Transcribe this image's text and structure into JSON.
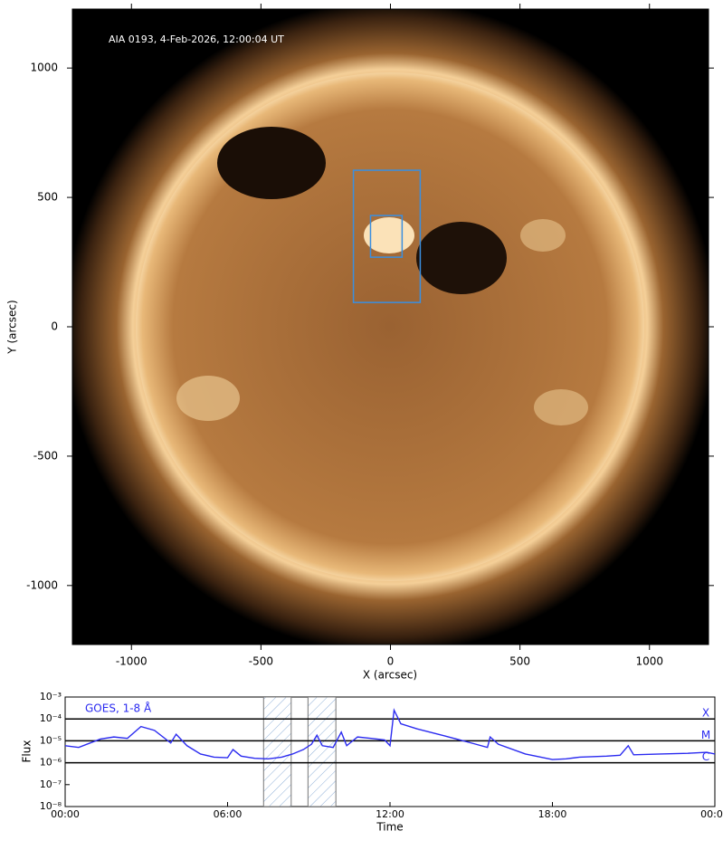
{
  "chart_data": [
    {
      "type": "image",
      "title": "AIA 0193, 4-Feb-2026, 12:00:04 UT",
      "xlabel": "X (arcsec)",
      "ylabel": "Y (arcsec)",
      "xlim": [
        -1228,
        1228
      ],
      "ylim": [
        -1228,
        1228
      ],
      "xticks": [
        -1000,
        -500,
        0,
        500,
        1000
      ],
      "yticks": [
        -1000,
        -500,
        0,
        500,
        1000
      ],
      "boxes": [
        {
          "x": [
            -143,
            115
          ],
          "y": [
            94,
            605
          ]
        },
        {
          "x": [
            -77,
            45
          ],
          "y": [
            269,
            430
          ]
        }
      ],
      "color": "#3a8fe0"
    },
    {
      "type": "line",
      "xlabel": "Time",
      "ylabel": "Flux",
      "log_y": true,
      "xlim": [
        0,
        24
      ],
      "ylim": [
        1e-08,
        0.001
      ],
      "xticks": [
        {
          "value": 0,
          "label": "00:00"
        },
        {
          "value": 6,
          "label": "06:00"
        },
        {
          "value": 12,
          "label": "12:00"
        },
        {
          "value": 18,
          "label": "18:00"
        },
        {
          "value": 24,
          "label": "00:00"
        }
      ],
      "yticks": [
        {
          "value": 1e-08,
          "label": "10⁻⁸"
        },
        {
          "value": 1e-07,
          "label": "10⁻⁷"
        },
        {
          "value": 1e-06,
          "label": "10⁻⁶"
        },
        {
          "value": 1e-05,
          "label": "10⁻⁵"
        },
        {
          "value": 0.0001,
          "label": "10⁻⁴"
        },
        {
          "value": 0.001,
          "label": "10⁻³"
        }
      ],
      "levels": [
        {
          "value": 0.0001,
          "label": "X"
        },
        {
          "value": 1e-05,
          "label": "M"
        },
        {
          "value": 1e-06,
          "label": "C"
        }
      ],
      "shaded_spans": [
        [
          7.33,
          8.35
        ],
        [
          8.97,
          10.0
        ]
      ],
      "series": [
        {
          "name": "GOES, 1-8 Å",
          "color": "#2b2bf0",
          "x": [
            0,
            0.5,
            1.3,
            1.8,
            2.3,
            2.8,
            3.3,
            3.9,
            4.1,
            4.5,
            5.0,
            5.5,
            6.0,
            6.2,
            6.5,
            7.0,
            7.5,
            8.0,
            8.4,
            8.8,
            9.1,
            9.3,
            9.5,
            9.9,
            10.2,
            10.4,
            10.8,
            11.3,
            11.8,
            12.0,
            12.15,
            12.4,
            13,
            14,
            15,
            15.6,
            15.7,
            16,
            17,
            18,
            18.5,
            19,
            20,
            20.5,
            20.8,
            21.0,
            22,
            23,
            23.7,
            24
          ],
          "values": [
            6e-06,
            5e-06,
            1.2e-05,
            1.5e-05,
            1.3e-05,
            4.5e-05,
            3e-05,
            8e-06,
            2e-05,
            6e-06,
            2.5e-06,
            1.8e-06,
            1.7e-06,
            4e-06,
            2e-06,
            1.6e-06,
            1.5e-06,
            1.8e-06,
            2.5e-06,
            4e-06,
            7e-06,
            1.8e-05,
            6e-06,
            5e-06,
            2.5e-05,
            6e-06,
            1.5e-05,
            1.3e-05,
            1.1e-05,
            6e-06,
            0.00025,
            6e-05,
            3.5e-05,
            1.7e-05,
            8e-06,
            5e-06,
            1.5e-05,
            7e-06,
            2.5e-06,
            1.4e-06,
            1.5e-06,
            1.8e-06,
            2e-06,
            2.2e-06,
            6e-06,
            2.3e-06,
            2.5e-06,
            2.7e-06,
            3e-06,
            2.5e-06
          ]
        }
      ]
    }
  ]
}
